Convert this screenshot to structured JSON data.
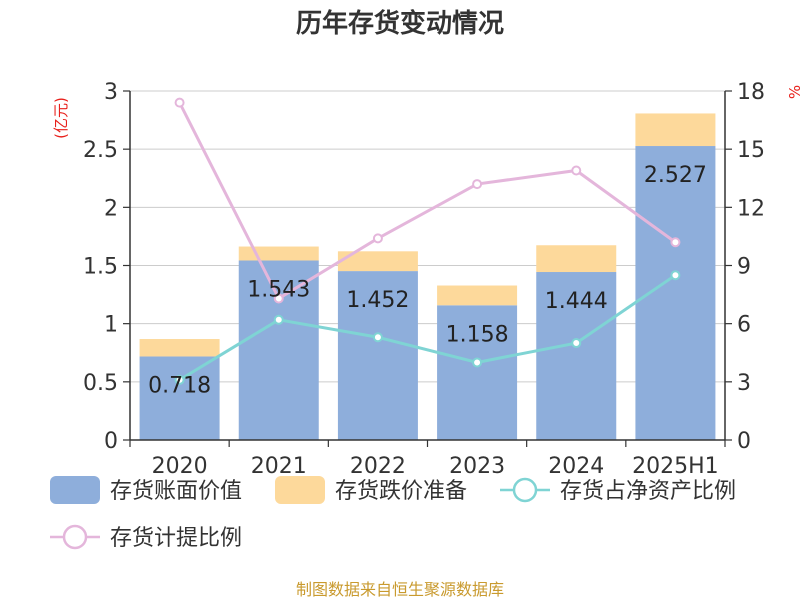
{
  "chart_data": {
    "type": "bar",
    "title": "历年存货变动情况",
    "categories": [
      "2020",
      "2021",
      "2022",
      "2023",
      "2024",
      "2025H1"
    ],
    "left_axis": {
      "unit": "(亿元)",
      "ylim": [
        0,
        3
      ],
      "ticks": [
        "0",
        "0.5",
        "1",
        "1.5",
        "2",
        "2.5",
        "3"
      ]
    },
    "right_axis": {
      "unit": "%",
      "ylim": [
        0,
        18
      ],
      "ticks": [
        "0",
        "3",
        "6",
        "9",
        "12",
        "15",
        "18"
      ]
    },
    "series": [
      {
        "name": "存货账面价值",
        "kind": "bar",
        "stack": "a",
        "axis": "left",
        "color": "#8eaedb",
        "values": [
          0.718,
          1.543,
          1.452,
          1.158,
          1.444,
          2.527
        ],
        "labels": [
          "0.718",
          "1.543",
          "1.452",
          "1.158",
          "1.444",
          "2.527"
        ]
      },
      {
        "name": "存货跌价准备",
        "kind": "bar",
        "stack": "a",
        "axis": "left",
        "color": "#fdd99b",
        "values": [
          0.15,
          0.12,
          0.17,
          0.17,
          0.23,
          0.28
        ]
      },
      {
        "name": "存货占净资产比例",
        "kind": "line",
        "axis": "right",
        "color": "#7fd4d4",
        "values": [
          3.1,
          6.2,
          5.3,
          4.0,
          5.0,
          8.5
        ]
      },
      {
        "name": "存货计提比例",
        "kind": "line",
        "axis": "right",
        "color": "#e4b6db",
        "values": [
          17.4,
          7.3,
          10.4,
          13.2,
          13.9,
          10.2
        ]
      }
    ],
    "grid": true,
    "legend_position": "bottom"
  },
  "footer": {
    "source": "制图数据来自恒生聚源数据库"
  }
}
